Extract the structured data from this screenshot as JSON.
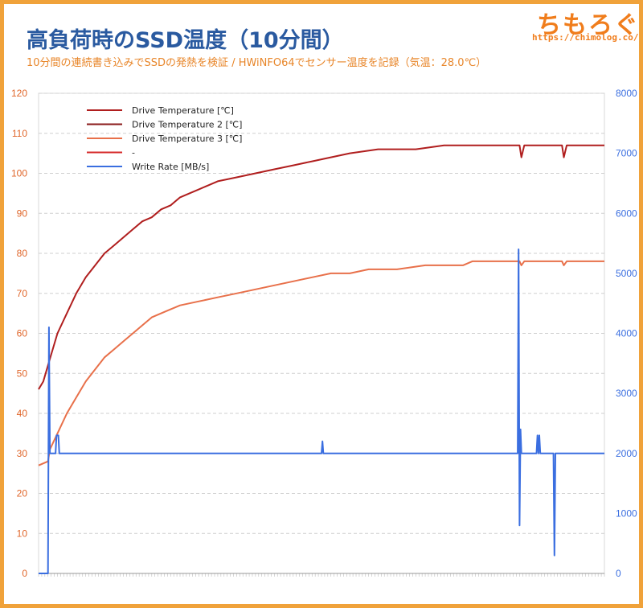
{
  "header": {
    "title": "高負荷時のSSD温度（10分間）",
    "subtitle": "10分間の連続書き込みでSSDの発熱を検証 / HWiNFO64でセンサー温度を記録（気温：28.0℃）",
    "logo_text": "ちもろぐ",
    "logo_url": "https://chimolog.co/"
  },
  "chart_data": {
    "type": "line",
    "title": "高負荷時のSSD温度（10分間）",
    "subtitle": "10分間の連続書き込みでSSDの発熱を検証 / HWiNFO64でセンサー温度を記録（気温：28.0℃）",
    "xlabel": "",
    "ylabel": "",
    "grid": true,
    "legend_position": "top-left",
    "x": {
      "min": 0,
      "max": 600
    },
    "y_left": {
      "min": 0,
      "max": 120,
      "ticks": [
        0,
        10,
        20,
        30,
        40,
        50,
        60,
        70,
        80,
        90,
        100,
        110,
        120
      ],
      "color": "#e0662a"
    },
    "y_right": {
      "min": 0,
      "max": 8000,
      "ticks": [
        0,
        1000,
        2000,
        3000,
        4000,
        5000,
        6000,
        7000,
        8000
      ],
      "color": "#3a6ee0"
    },
    "series": [
      {
        "name": "Drive Temperature [℃]",
        "axis": "left",
        "color": "#b01e1e",
        "points": [
          [
            0,
            46
          ],
          [
            5,
            48
          ],
          [
            10,
            52
          ],
          [
            15,
            56
          ],
          [
            20,
            60
          ],
          [
            30,
            65
          ],
          [
            40,
            70
          ],
          [
            50,
            74
          ],
          [
            60,
            77
          ],
          [
            70,
            80
          ],
          [
            80,
            82
          ],
          [
            90,
            84
          ],
          [
            100,
            86
          ],
          [
            110,
            88
          ],
          [
            120,
            89
          ],
          [
            130,
            91
          ],
          [
            140,
            92
          ],
          [
            150,
            94
          ],
          [
            160,
            95
          ],
          [
            170,
            96
          ],
          [
            180,
            97
          ],
          [
            190,
            98
          ],
          [
            210,
            99
          ],
          [
            230,
            100
          ],
          [
            250,
            101
          ],
          [
            270,
            102
          ],
          [
            290,
            103
          ],
          [
            310,
            104
          ],
          [
            330,
            105
          ],
          [
            360,
            106
          ],
          [
            400,
            106
          ],
          [
            430,
            107
          ],
          [
            510,
            107
          ],
          [
            512,
            104
          ],
          [
            515,
            107
          ],
          [
            555,
            107
          ],
          [
            557,
            104
          ],
          [
            560,
            107
          ],
          [
            600,
            107
          ]
        ]
      },
      {
        "name": "Drive Temperature 2 [℃]",
        "axis": "left",
        "color": "#8a1a1a",
        "points": []
      },
      {
        "name": "Drive Temperature 3 [℃]",
        "axis": "left",
        "color": "#e8704a",
        "points": [
          [
            0,
            27
          ],
          [
            10,
            28
          ],
          [
            12,
            31
          ],
          [
            20,
            35
          ],
          [
            30,
            40
          ],
          [
            40,
            44
          ],
          [
            50,
            48
          ],
          [
            60,
            51
          ],
          [
            70,
            54
          ],
          [
            80,
            56
          ],
          [
            90,
            58
          ],
          [
            100,
            60
          ],
          [
            110,
            62
          ],
          [
            120,
            64
          ],
          [
            130,
            65
          ],
          [
            140,
            66
          ],
          [
            150,
            67
          ],
          [
            170,
            68
          ],
          [
            190,
            69
          ],
          [
            210,
            70
          ],
          [
            230,
            71
          ],
          [
            250,
            72
          ],
          [
            270,
            73
          ],
          [
            290,
            74
          ],
          [
            310,
            75
          ],
          [
            330,
            75
          ],
          [
            350,
            76
          ],
          [
            380,
            76
          ],
          [
            410,
            77
          ],
          [
            450,
            77
          ],
          [
            460,
            78
          ],
          [
            510,
            78
          ],
          [
            512,
            77
          ],
          [
            515,
            78
          ],
          [
            555,
            78
          ],
          [
            557,
            77
          ],
          [
            560,
            78
          ],
          [
            600,
            78
          ]
        ]
      },
      {
        "name": "-",
        "axis": "left",
        "color": "#d62a2a",
        "points": []
      },
      {
        "name": "Write Rate [MB/s]",
        "axis": "right",
        "color": "#3a6ee0",
        "points": [
          [
            0,
            0
          ],
          [
            10,
            0
          ],
          [
            11,
            4100
          ],
          [
            12,
            2000
          ],
          [
            18,
            2000
          ],
          [
            19,
            2300
          ],
          [
            21,
            2300
          ],
          [
            22,
            2000
          ],
          [
            300,
            2000
          ],
          [
            301,
            2200
          ],
          [
            302,
            2000
          ],
          [
            508,
            2000
          ],
          [
            509,
            5400
          ],
          [
            510,
            800
          ],
          [
            511,
            2400
          ],
          [
            512,
            2000
          ],
          [
            528,
            2000
          ],
          [
            529,
            2300
          ],
          [
            530,
            2000
          ],
          [
            531,
            2300
          ],
          [
            532,
            2000
          ],
          [
            546,
            2000
          ],
          [
            547,
            300
          ],
          [
            548,
            2000
          ],
          [
            600,
            2000
          ]
        ]
      }
    ]
  }
}
